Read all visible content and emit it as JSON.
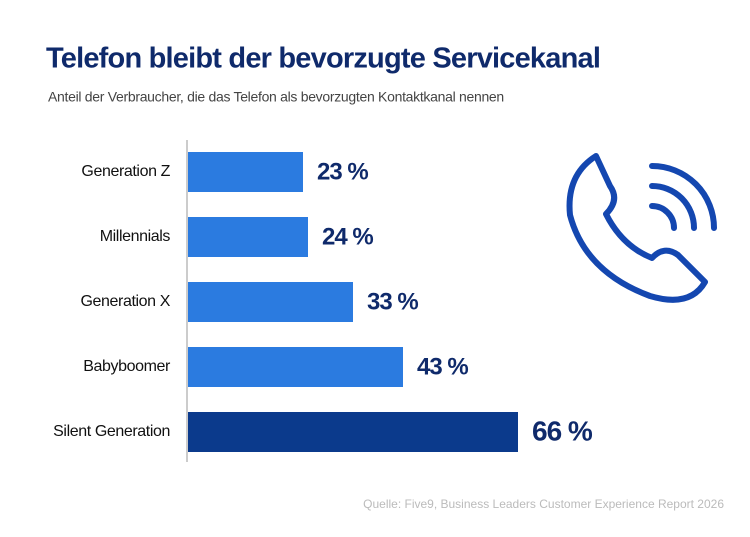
{
  "chart_data": {
    "type": "hbar",
    "title": "Telefon bleibt der bevorzugte Servicekanal",
    "subtitle": "Anteil der Verbraucher, die das Telefon als bevorzugten Kontaktkanal nennen",
    "categories": [
      "Generation Z",
      "Millennials",
      "Generation X",
      "Babyboomer",
      "Silent Generation"
    ],
    "values": [
      23,
      24,
      33,
      43,
      66
    ],
    "value_labels": [
      "23 %",
      "24 %",
      "33 %",
      "43 %",
      "66 %"
    ],
    "colors": [
      "#2b7be0",
      "#2b7be0",
      "#2b7be0",
      "#2b7be0",
      "#0b3a8c"
    ],
    "source": "Quelle: Five9, Business Leaders Customer Experience Report 2026"
  }
}
